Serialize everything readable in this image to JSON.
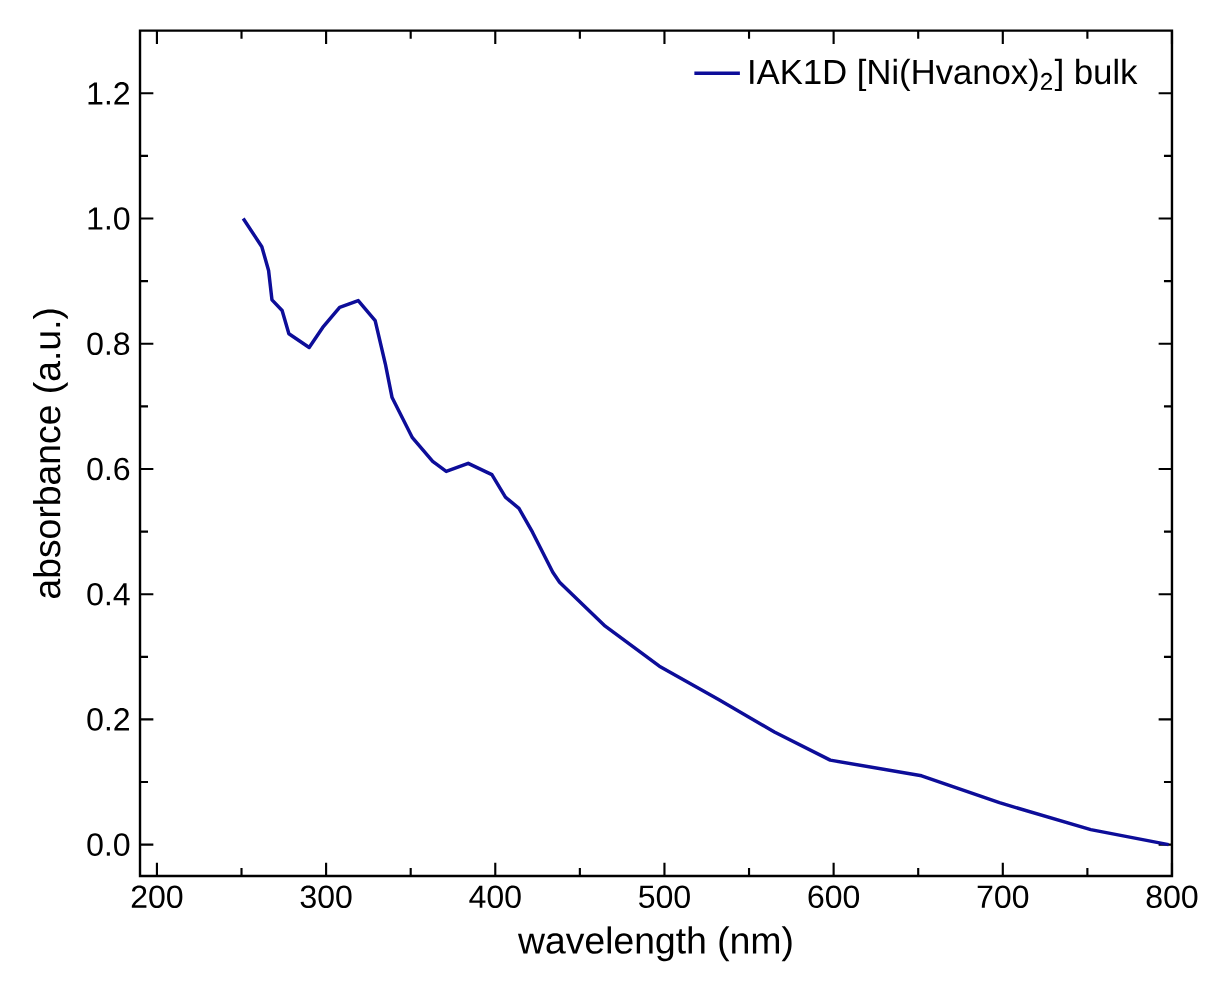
{
  "chart_data": {
    "type": "line",
    "xlabel": "wavelength (nm)",
    "ylabel": "absorbance (a.u.)",
    "xlim": [
      190,
      800
    ],
    "ylim": [
      -0.05,
      1.3
    ],
    "xticks": [
      200,
      300,
      400,
      500,
      600,
      700,
      800
    ],
    "yticks": [
      {
        "value": 0,
        "label": "0.0"
      },
      {
        "value": 0.2,
        "label": "0.2"
      },
      {
        "value": 0.4,
        "label": "0.4"
      },
      {
        "value": 0.6,
        "label": "0.6"
      },
      {
        "value": 0.8,
        "label": "0.8"
      },
      {
        "value": 1.0,
        "label": "1.0"
      },
      {
        "value": 1.2,
        "label": "1.2"
      }
    ],
    "legend": "top right",
    "grid": false,
    "marker": "none",
    "line_style": "solid",
    "series": [
      {
        "name": "IAK1D [Ni(Hvanox)$_{2}$] bulk",
        "color": "#0d0d99",
        "x": [
          251,
          262,
          266,
          268,
          274,
          278,
          290,
          298,
          308,
          319,
          329,
          335,
          339,
          351,
          363,
          371,
          384,
          398,
          406,
          414,
          422,
          434,
          438,
          465,
          497,
          532,
          565,
          598,
          652,
          698,
          752,
          798
        ],
        "values": [
          1.0,
          0.955,
          0.917,
          0.87,
          0.853,
          0.816,
          0.794,
          0.826,
          0.858,
          0.869,
          0.837,
          0.768,
          0.714,
          0.65,
          0.612,
          0.596,
          0.609,
          0.591,
          0.555,
          0.537,
          0.499,
          0.435,
          0.419,
          0.349,
          0.285,
          0.232,
          0.18,
          0.135,
          0.11,
          0.067,
          0.024,
          0.0
        ]
      }
    ]
  }
}
